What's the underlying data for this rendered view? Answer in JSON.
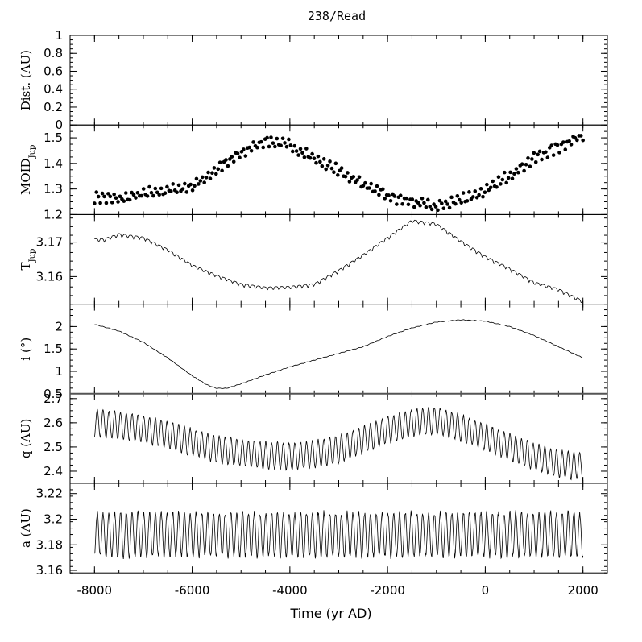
{
  "chart_data": {
    "type": "line",
    "title": "238/Read",
    "xlabel": "Time (yr AD)",
    "xlim": [
      -8500,
      2500
    ],
    "xticks": [
      -8000,
      -6000,
      -4000,
      -2000,
      0,
      2000
    ],
    "xtick_labels": [
      "-8000",
      "-6000",
      "-4000",
      "-2000",
      "0",
      "2000"
    ],
    "x_range": [
      -8000,
      2000
    ],
    "panels": [
      {
        "id": "dist",
        "ylabel": "Dist. (AU)",
        "ylim": [
          0,
          1
        ],
        "yticks": [
          0,
          0.2,
          0.4,
          0.6,
          0.8,
          1
        ],
        "ytick_labels": [
          "0",
          "0.2",
          "0.4",
          "0.6",
          "0.8",
          "1"
        ],
        "style": "none",
        "series": []
      },
      {
        "id": "moid",
        "ylabel": "MOID",
        "ylabel_sub": "Jup",
        "ylim": [
          1.2,
          1.55
        ],
        "yticks": [
          1.2,
          1.3,
          1.4,
          1.5
        ],
        "ytick_labels": [
          "1.2",
          "1.3",
          "1.4",
          "1.5"
        ],
        "style": "dots",
        "keypoints": [
          [
            -8000,
            1.27
          ],
          [
            -7500,
            1.26
          ],
          [
            -7000,
            1.28
          ],
          [
            -6000,
            1.31
          ],
          [
            -5000,
            1.44
          ],
          [
            -4500,
            1.49
          ],
          [
            -4000,
            1.47
          ],
          [
            -3000,
            1.37
          ],
          [
            -2000,
            1.27
          ],
          [
            -1000,
            1.23
          ],
          [
            0,
            1.29
          ],
          [
            1000,
            1.42
          ],
          [
            2000,
            1.51
          ]
        ],
        "spread": 0.035,
        "cycle_years": 119,
        "samples": 250,
        "amp_var": 0
      },
      {
        "id": "tjup",
        "ylabel": "T",
        "ylabel_sub": "Jup",
        "ylim": [
          3.152,
          3.178
        ],
        "yticks": [
          3.16,
          3.17
        ],
        "ytick_labels": [
          "3.16",
          "3.17"
        ],
        "style": "line",
        "keypoints": [
          [
            -8000,
            3.171
          ],
          [
            -7800,
            3.171
          ],
          [
            -7500,
            3.1725
          ],
          [
            -7000,
            3.1715
          ],
          [
            -6500,
            3.168
          ],
          [
            -6000,
            3.1635
          ],
          [
            -5500,
            3.1605
          ],
          [
            -5000,
            3.158
          ],
          [
            -4500,
            3.157
          ],
          [
            -4000,
            3.1572
          ],
          [
            -3500,
            3.158
          ],
          [
            -3000,
            3.162
          ],
          [
            -2500,
            3.1665
          ],
          [
            -2000,
            3.1715
          ],
          [
            -1500,
            3.1765
          ],
          [
            -1000,
            3.1755
          ],
          [
            -500,
            3.1705
          ],
          [
            0,
            3.166
          ],
          [
            500,
            3.1625
          ],
          [
            1000,
            3.1585
          ],
          [
            1500,
            3.1565
          ],
          [
            2000,
            3.153
          ]
        ],
        "amp": 0.0007,
        "cycle_years": 119,
        "samples": 500,
        "amp_var": 0.5
      },
      {
        "id": "incl",
        "ylabel": "i (°)",
        "ylim": [
          0.5,
          2.5
        ],
        "yticks": [
          0.5,
          1,
          1.5,
          2
        ],
        "ytick_labels": [
          "0.5",
          "1",
          "1.5",
          "2"
        ],
        "style": "line",
        "keypoints": [
          [
            -8000,
            2.05
          ],
          [
            -7500,
            1.9
          ],
          [
            -7000,
            1.65
          ],
          [
            -6500,
            1.3
          ],
          [
            -6000,
            0.9
          ],
          [
            -5700,
            0.7
          ],
          [
            -5500,
            0.62
          ],
          [
            -5300,
            0.62
          ],
          [
            -5000,
            0.72
          ],
          [
            -4500,
            0.92
          ],
          [
            -4000,
            1.1
          ],
          [
            -3500,
            1.25
          ],
          [
            -3000,
            1.4
          ],
          [
            -2500,
            1.55
          ],
          [
            -2000,
            1.78
          ],
          [
            -1500,
            1.97
          ],
          [
            -1000,
            2.1
          ],
          [
            -500,
            2.15
          ],
          [
            0,
            2.12
          ],
          [
            500,
            2.0
          ],
          [
            1000,
            1.8
          ],
          [
            1500,
            1.55
          ],
          [
            2000,
            1.3
          ]
        ],
        "amp": 0.008,
        "cycle_years": 119,
        "samples": 300,
        "amp_var": 0
      },
      {
        "id": "q",
        "ylabel": "q (AU)",
        "ylim": [
          2.35,
          2.72
        ],
        "yticks": [
          2.4,
          2.5,
          2.6,
          2.7
        ],
        "ytick_labels": [
          "2.4",
          "2.5",
          "2.6",
          "2.7"
        ],
        "style": "line",
        "keypoints": [
          [
            -8000,
            2.6
          ],
          [
            -7500,
            2.59
          ],
          [
            -7000,
            2.575
          ],
          [
            -6500,
            2.55
          ],
          [
            -6000,
            2.52
          ],
          [
            -5500,
            2.49
          ],
          [
            -5000,
            2.475
          ],
          [
            -4500,
            2.465
          ],
          [
            -4000,
            2.46
          ],
          [
            -3500,
            2.47
          ],
          [
            -3000,
            2.49
          ],
          [
            -2500,
            2.53
          ],
          [
            -2000,
            2.57
          ],
          [
            -1500,
            2.6
          ],
          [
            -1000,
            2.61
          ],
          [
            -500,
            2.58
          ],
          [
            0,
            2.54
          ],
          [
            500,
            2.5
          ],
          [
            1000,
            2.46
          ],
          [
            1500,
            2.43
          ],
          [
            2000,
            2.42
          ]
        ],
        "amp": 0.055,
        "cycle_years": 119,
        "samples": 1200,
        "amp_var": 0.2
      },
      {
        "id": "a",
        "ylabel": "a (AU)",
        "ylim": [
          3.158,
          3.228
        ],
        "yticks": [
          3.16,
          3.18,
          3.2,
          3.22
        ],
        "ytick_labels": [
          "3.16",
          "3.18",
          "3.2",
          "3.22"
        ],
        "style": "line",
        "keypoints": [
          [
            -8000,
            3.188
          ],
          [
            2000,
            3.188
          ]
        ],
        "amp": 0.017,
        "cycle_years": 119,
        "samples": 1200,
        "amp_var": 0.25
      }
    ]
  }
}
